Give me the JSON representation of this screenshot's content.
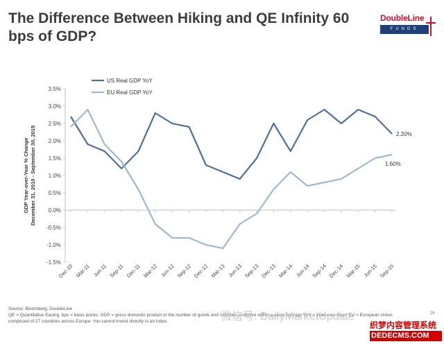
{
  "title": "The Difference Between Hiking and QE Infinity 60 bps of GDP?",
  "logo": {
    "brand": "DoubleLine",
    "sub": "FUNDS"
  },
  "chart_data": {
    "type": "line",
    "ylabel_line1": "GDP Year-over-Year % Change",
    "ylabel_line2": "December 31, 2010 - September 30, 2015",
    "ylim": [
      -1.5,
      3.5
    ],
    "yticks": [
      3.5,
      3.0,
      2.5,
      2.0,
      1.5,
      1.0,
      0.5,
      0.0,
      -0.5,
      -1.0,
      -1.5
    ],
    "ytick_labels": [
      "3.5%",
      "3.0%",
      "2.5%",
      "2.0%",
      "1.5%",
      "1.0%",
      "0.5%",
      "0.0%",
      "-0.5%",
      "-1.0%",
      "-1.5%"
    ],
    "categories": [
      "Dec-10",
      "Mar-11",
      "Jun-11",
      "Sep-11",
      "Dec-11",
      "Mar-12",
      "Jun-12",
      "Sep-12",
      "Dec-12",
      "Mar-13",
      "Jun-13",
      "Sep-13",
      "Dec-13",
      "Mar-14",
      "Jun-14",
      "Sep-14",
      "Dec-14",
      "Mar-15",
      "Jun-15",
      "Sep-15"
    ],
    "series": [
      {
        "name": "US Real GDP YoY",
        "color": "#4f6f96",
        "end_label": "2.20%",
        "values": [
          2.7,
          1.9,
          1.7,
          1.2,
          1.7,
          2.8,
          2.5,
          2.4,
          1.3,
          1.1,
          0.9,
          1.5,
          2.5,
          1.7,
          2.6,
          2.9,
          2.5,
          2.9,
          2.7,
          2.2
        ]
      },
      {
        "name": "EU Real GDP YoY",
        "color": "#9db8cf",
        "end_label": "1.60%",
        "values": [
          2.4,
          2.9,
          1.9,
          1.4,
          0.6,
          -0.4,
          -0.8,
          -0.8,
          -1.0,
          -1.1,
          -0.4,
          -0.1,
          0.6,
          1.1,
          0.7,
          0.8,
          0.9,
          1.2,
          1.5,
          1.6
        ]
      }
    ],
    "legend_position": "top-left",
    "grid": false
  },
  "footer": {
    "source": "Source: Bloomberg, DoubleLine",
    "line2": "QE = Quantitative Easing. bps = basis points. GDP = gross domestic product or the number of goods and services produced within a given country. YoY = Year-over-Year. EU = European Union",
    "line3": "comprised of 27 countries across Europe. You cannot invest directly in an index."
  },
  "watermark": "微信号: DailyMarketUpdate",
  "stamp": {
    "line1": "织梦内容管理系统",
    "line2": "DEDECMS.COM"
  },
  "page_number": "26"
}
